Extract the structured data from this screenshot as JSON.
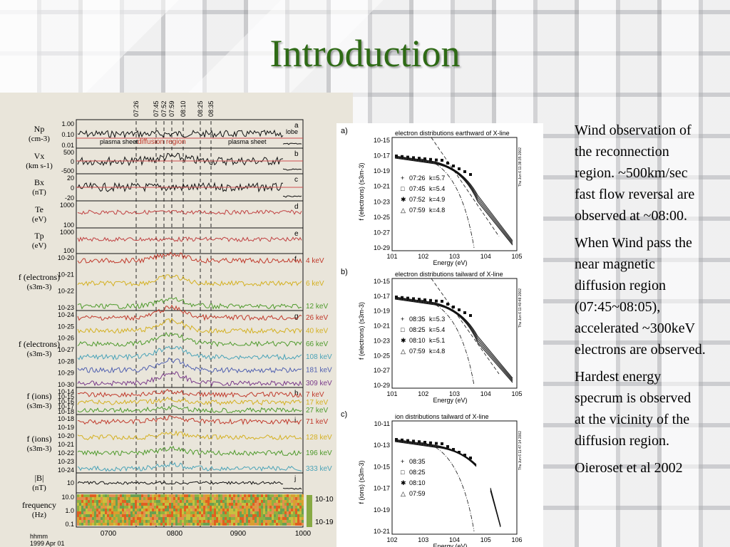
{
  "slide": {
    "title": "Introduction",
    "paragraphs": [
      [
        "Wind observation of",
        "the reconnection",
        "region. ~500km/sec",
        "fast flow reversal are",
        "observed at ~08:00."
      ],
      [
        "When Wind pass the",
        "near magnetic",
        "diffusion region",
        "(07:45~08:05),",
        "accelerated ~300keV",
        "electrons are observed."
      ],
      [
        "Hardest energy",
        "specrum is observed",
        "at the vicinity of the",
        "diffusion region."
      ],
      [
        "Oieroset et al 2002"
      ]
    ]
  },
  "timeseries_figure": {
    "event_times": [
      "07:26",
      "07:45",
      "07:52",
      "07:59",
      "08:10",
      "08:25",
      "08:35"
    ],
    "region_labels": [
      "plasma sheet",
      "diffusion region",
      "plasma sheet",
      "lobe"
    ],
    "x_ticks": [
      "0700",
      "0800",
      "0900",
      "1000"
    ],
    "x_axis_label": "hhmm",
    "date_label": "1999 Apr 01",
    "panels": [
      {
        "letter": "a",
        "ylabel": [
          "Np",
          "(cm-3)"
        ],
        "ticks": [
          "1.00",
          "0.10",
          "0.01"
        ]
      },
      {
        "letter": "b",
        "ylabel": [
          "Vx",
          "(km s-1)"
        ],
        "ticks": [
          "500",
          "0",
          "-500"
        ]
      },
      {
        "letter": "c",
        "ylabel": [
          "Bx",
          "(nT)"
        ],
        "ticks": [
          "20",
          "0",
          "-20"
        ]
      },
      {
        "letter": "d",
        "ylabel": [
          "Te",
          "(eV)"
        ],
        "ticks": [
          "1000",
          "100"
        ]
      },
      {
        "letter": "e",
        "ylabel": [
          "Tp",
          "(eV)"
        ],
        "ticks": [
          "1000",
          "100"
        ]
      },
      {
        "letter": "f",
        "ylabel": [
          "f (electrons)",
          "(s3m-3)"
        ],
        "ticks": [
          "10-20",
          "10-21",
          "10-22",
          "10-23"
        ],
        "channels": [
          "4 keV",
          "6 keV",
          "12 keV"
        ]
      },
      {
        "letter": "g",
        "ylabel": [
          "f (electrons)",
          "(s3m-3)"
        ],
        "ticks": [
          "10-24",
          "10-25",
          "10-26",
          "10-27",
          "10-28",
          "10-29",
          "10-30"
        ],
        "channels": [
          "26 keV",
          "40 keV",
          "66 keV",
          "108 keV",
          "181 keV",
          "309 keV"
        ]
      },
      {
        "letter": "h",
        "ylabel": [
          "f (ions)",
          "(s3m-3)"
        ],
        "ticks": [
          "10-14",
          "10-15",
          "10-16",
          "10-17",
          "10-18"
        ],
        "channels": [
          "7 keV",
          "17 keV",
          "27 keV"
        ]
      },
      {
        "letter": "i",
        "ylabel": [
          "f (ions)",
          "(s3m-3)"
        ],
        "ticks": [
          "10-18",
          "10-19",
          "10-20",
          "10-21",
          "10-22",
          "10-23",
          "10-24"
        ],
        "channels": [
          "71 keV",
          "128 keV",
          "196 keV",
          "333 keV"
        ]
      },
      {
        "letter": "j",
        "ylabel": [
          "|B|",
          "(nT)"
        ],
        "ticks": [
          "10"
        ]
      },
      {
        "letter": "",
        "ylabel": [
          "frequency",
          "(Hz)"
        ],
        "ticks": [
          "10.0",
          "1.0",
          "0.1"
        ],
        "colorbar": [
          "10-10",
          "10-19"
        ]
      }
    ],
    "channel_colors": [
      "#c0392b",
      "#d4b020",
      "#4e9a2c",
      "#4aa3b8",
      "#5060b0",
      "#7a3a8a"
    ]
  },
  "spectra_figure": {
    "panels": [
      {
        "letter": "a)",
        "title": "electron distributions earthward of X-line",
        "ylabel": "f (electrons)  (s3m-3)",
        "xlabel": "Energy (eV)",
        "yticks": [
          "10-15",
          "10-17",
          "10-19",
          "10-21",
          "10-23",
          "10-25",
          "10-27",
          "10-29"
        ],
        "xticks": [
          "101",
          "102",
          "103",
          "104",
          "105"
        ],
        "legend": [
          {
            "symbol": "+",
            "time": "07:26",
            "kappa": "k=5.7"
          },
          {
            "symbol": "□",
            "time": "07:45",
            "kappa": "k=5.4"
          },
          {
            "symbol": "✱",
            "time": "07:52",
            "kappa": "k=4.9"
          },
          {
            "symbol": "△",
            "time": "07:59",
            "kappa": "k=4.8"
          }
        ],
        "side_note": "Thu Jun 6 11:38:35 2002"
      },
      {
        "letter": "b)",
        "title": "electron distributions tailward of X-line",
        "ylabel": "f (electrons)  (s3m-3)",
        "xlabel": "Energy (eV)",
        "yticks": [
          "10-15",
          "10-17",
          "10-19",
          "10-21",
          "10-23",
          "10-25",
          "10-27",
          "10-29"
        ],
        "xticks": [
          "101",
          "102",
          "103",
          "104",
          "105"
        ],
        "legend": [
          {
            "symbol": "+",
            "time": "08:35",
            "kappa": "k=5.3"
          },
          {
            "symbol": "□",
            "time": "08:25",
            "kappa": "k=5.4"
          },
          {
            "symbol": "✱",
            "time": "08:10",
            "kappa": "k=5.1"
          },
          {
            "symbol": "△",
            "time": "07:59",
            "kappa": "k=4.8"
          }
        ],
        "side_note": "Thu Jun 6 11:40:48 2002"
      },
      {
        "letter": "c)",
        "title": "ion distributions tailward of X-line",
        "ylabel": "f (ions)  (s3m-3)",
        "xlabel": "Energy (eV)",
        "yticks": [
          "10-11",
          "10-13",
          "10-15",
          "10-17",
          "10-19",
          "10-21"
        ],
        "xticks": [
          "102",
          "103",
          "104",
          "105",
          "106"
        ],
        "legend": [
          {
            "symbol": "+",
            "time": "08:35",
            "kappa": ""
          },
          {
            "symbol": "□",
            "time": "08:25",
            "kappa": ""
          },
          {
            "symbol": "✱",
            "time": "08:10",
            "kappa": ""
          },
          {
            "symbol": "△",
            "time": "07:59",
            "kappa": ""
          }
        ],
        "side_note": "Thu Jun 6 11:47:14 2002"
      }
    ]
  }
}
